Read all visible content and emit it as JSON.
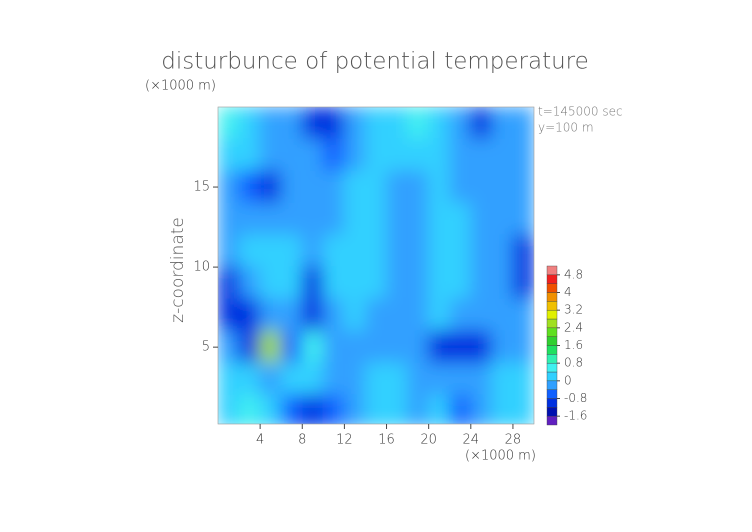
{
  "chart_data": {
    "type": "heatmap",
    "title": "disturbunce of potential temperature",
    "y_unit_label": "(×1000 m)",
    "x_unit_label": "(×1000 m)",
    "ylabel": "z-coordinate",
    "annotations": [
      "t=145000 sec",
      "y=100 m"
    ],
    "xlim": [
      0,
      30
    ],
    "ylim": [
      0.2,
      20
    ],
    "xticks": [
      4,
      8,
      12,
      16,
      20,
      24,
      28
    ],
    "yticks": [
      5,
      10,
      15
    ],
    "x": [
      1,
      3,
      5,
      7,
      9,
      11,
      13,
      15,
      17,
      19,
      21,
      23,
      25,
      27,
      29
    ],
    "y": [
      19,
      17,
      15,
      13,
      11,
      9,
      7,
      5,
      3,
      1
    ],
    "z": [
      [
        0.8,
        0.4,
        -0.2,
        -0.4,
        -0.8,
        -1.0,
        -0.4,
        0,
        0.2,
        0.6,
        0.4,
        -0.4,
        -0.8,
        -0.4,
        -0.2
      ],
      [
        0.4,
        0,
        -0.2,
        -0.2,
        -0.4,
        -0.6,
        -0.2,
        0.2,
        0,
        0.2,
        0,
        -0.2,
        -0.4,
        -0.2,
        -0.2
      ],
      [
        -0.4,
        -0.6,
        -0.8,
        -0.4,
        -0.2,
        -0.2,
        0.4,
        0.4,
        -0.2,
        -0.2,
        0,
        -0.2,
        -0.2,
        -0.4,
        -0.2
      ],
      [
        -0.2,
        -0.2,
        -0.2,
        -0.2,
        -0.2,
        -0.4,
        0.4,
        0.2,
        -0.2,
        -0.4,
        0.2,
        0,
        -0.2,
        -0.2,
        -0.4
      ],
      [
        -0.2,
        0,
        0.2,
        0,
        -0.4,
        0.2,
        0.4,
        0,
        -0.4,
        -0.2,
        0.4,
        0,
        -0.2,
        -0.4,
        -0.8
      ],
      [
        -0.8,
        -0.2,
        0.2,
        0,
        -1.0,
        0.2,
        0.2,
        0,
        -0.2,
        -0.2,
        0.4,
        0.2,
        -0.2,
        -0.4,
        -0.8
      ],
      [
        -1.2,
        -0.8,
        -0.2,
        -0.4,
        -1.2,
        -0.2,
        0,
        -0.2,
        -0.4,
        -0.2,
        0.2,
        -0.2,
        -0.2,
        -0.4,
        -0.4
      ],
      [
        -0.4,
        -1.0,
        2.4,
        -0.6,
        0.6,
        -0.2,
        -0.2,
        -0.2,
        -0.2,
        -0.4,
        -0.8,
        -1.2,
        -0.8,
        -0.4,
        -0.2
      ],
      [
        0.2,
        0.4,
        -0.2,
        0.2,
        0,
        -0.4,
        -0.2,
        0,
        0,
        -0.2,
        -0.2,
        -0.4,
        -0.2,
        0,
        0.2
      ],
      [
        0.4,
        0.6,
        0,
        -0.6,
        -0.8,
        -0.6,
        -0.2,
        0,
        0.2,
        -0.2,
        0,
        -0.6,
        -0.2,
        0.2,
        0
      ]
    ],
    "clim": [
      -2.0,
      5.2
    ],
    "cticks": [
      -1.6,
      -0.8,
      0,
      0.8,
      1.6,
      2.4,
      3.2,
      4,
      4.8
    ],
    "colors": [
      "#6020c0",
      "#0010b0",
      "#0030e0",
      "#1060ff",
      "#30a0ff",
      "#30d0ff",
      "#40f0f0",
      "#30f0b0",
      "#20e060",
      "#30d030",
      "#60e020",
      "#a0e020",
      "#e0f000",
      "#f0c000",
      "#f09000",
      "#f05000",
      "#f02020",
      "#f08080"
    ]
  }
}
